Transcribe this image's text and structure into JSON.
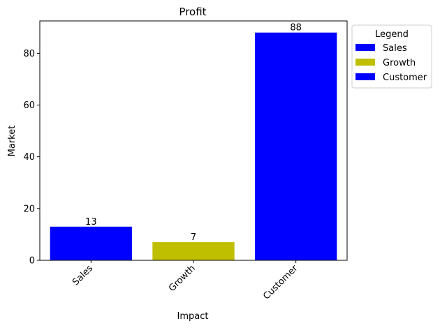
{
  "chart_data": {
    "type": "bar",
    "title": "Profit",
    "xlabel": "Impact",
    "ylabel": "Market",
    "categories": [
      "Sales",
      "Growth",
      "Customer"
    ],
    "values": [
      13,
      7,
      88
    ],
    "data_labels": [
      "13",
      "7",
      "88"
    ],
    "bar_colors": [
      "#0000ff",
      "#bfbf00",
      "#0000ff"
    ],
    "ylim": [
      0,
      92.5
    ],
    "yticks": [
      0,
      20,
      40,
      60,
      80
    ],
    "ytick_labels": [
      "0",
      "20",
      "40",
      "60",
      "80"
    ],
    "grid": false,
    "legend": {
      "title": "Legend",
      "placement": "outside-top-right",
      "entries": [
        {
          "label": "Sales",
          "color": "#0000ff"
        },
        {
          "label": "Growth",
          "color": "#bfbf00"
        },
        {
          "label": "Customer",
          "color": "#0000ff"
        }
      ]
    }
  }
}
